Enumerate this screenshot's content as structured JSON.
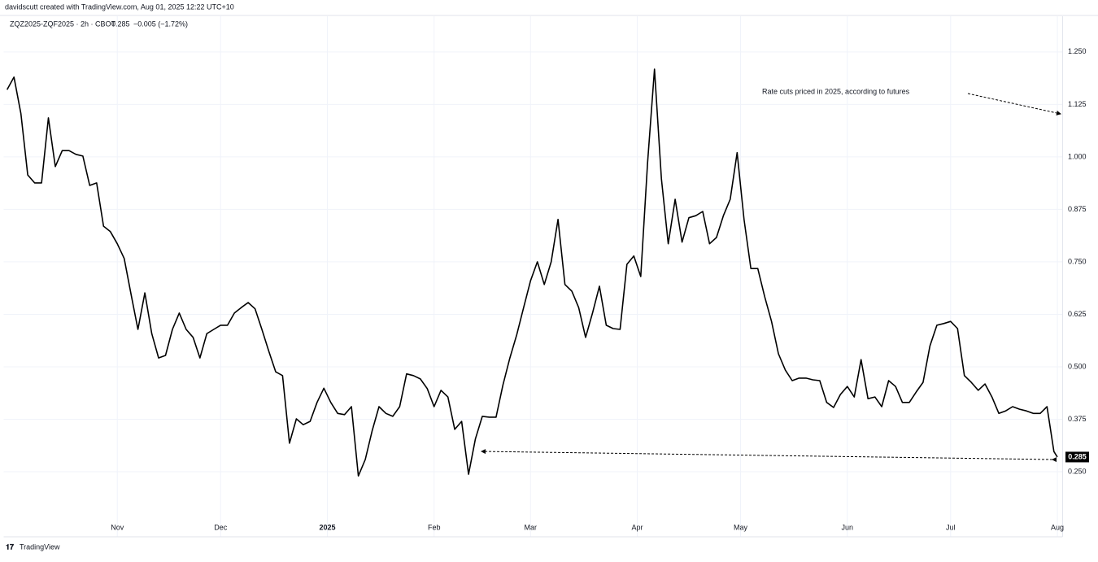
{
  "header": {
    "credit": "davidscutt created with TradingView.com, Aug 01, 2025 12:22 UTC+10",
    "symbol": "ZQZ2025-ZQF2025 · 2h · CBOT",
    "last": "0.285",
    "change": "−0.005 (−1.72%)"
  },
  "footer": {
    "brand": "TradingView"
  },
  "chart_data": {
    "type": "line",
    "annotation": "Rate cuts priced in 2025, according to futures",
    "grid": true,
    "xlim": [
      -2,
      305.5
    ],
    "ylim": [
      0.095,
      1.335
    ],
    "xticks": [
      {
        "value": 31,
        "label": "Nov"
      },
      {
        "value": 61,
        "label": "Dec"
      },
      {
        "value": 92,
        "label": "2025"
      },
      {
        "value": 123,
        "label": "Feb"
      },
      {
        "value": 151,
        "label": "Mar"
      },
      {
        "value": 182,
        "label": "Apr"
      },
      {
        "value": 212,
        "label": "May"
      },
      {
        "value": 243,
        "label": "Jun"
      },
      {
        "value": 273,
        "label": "Jul"
      },
      {
        "value": 304,
        "label": "Aug"
      }
    ],
    "yticks": [
      {
        "value": 0.25,
        "label": "0.250"
      },
      {
        "value": 0.375,
        "label": "0.375"
      },
      {
        "value": 0.5,
        "label": "0.500"
      },
      {
        "value": 0.625,
        "label": "0.625"
      },
      {
        "value": 0.75,
        "label": "0.750"
      },
      {
        "value": 0.875,
        "label": "0.875"
      },
      {
        "value": 1,
        "label": "1.000"
      },
      {
        "value": 1.125,
        "label": "1.125"
      },
      {
        "value": 1.25,
        "label": "1.250"
      }
    ],
    "series": [
      {
        "name": "ZQZ2025-ZQF2025",
        "color": "#000000",
        "x": [
          -1,
          1,
          3,
          5,
          7,
          9,
          11,
          13,
          15,
          17,
          19,
          21,
          23,
          25,
          27,
          29,
          31,
          33,
          35,
          37,
          39,
          41,
          43,
          45,
          47,
          49,
          51,
          53,
          55,
          57,
          59,
          61,
          63,
          65,
          67,
          69,
          71,
          73,
          75,
          77,
          79,
          81,
          83,
          85,
          87,
          89,
          91,
          93,
          95,
          97,
          99,
          101,
          103,
          105,
          107,
          109,
          111,
          113,
          115,
          117,
          119,
          121,
          123,
          125,
          127,
          129,
          131,
          133,
          135,
          137,
          139,
          141,
          143,
          145,
          147,
          149,
          151,
          153,
          155,
          157,
          159,
          161,
          163,
          165,
          167,
          169,
          171,
          173,
          175,
          177,
          179,
          181,
          183,
          185,
          187,
          189,
          191,
          193,
          195,
          197,
          199,
          201,
          203,
          205,
          207,
          209,
          211,
          213,
          215,
          217,
          219,
          221,
          223,
          225,
          227,
          229,
          231,
          233,
          235,
          237,
          239,
          241,
          243,
          245,
          247,
          249,
          251,
          253,
          255,
          257,
          259,
          261,
          263,
          265,
          267,
          269,
          271,
          273,
          275,
          277,
          279,
          281,
          283,
          285,
          287,
          289,
          291,
          293,
          295,
          297,
          299,
          301,
          303,
          304
        ],
        "values": [
          1.16,
          1.19,
          1.103,
          0.957,
          0.938,
          0.938,
          1.093,
          0.977,
          1.015,
          1.015,
          1.006,
          1.002,
          0.932,
          0.938,
          0.835,
          0.822,
          0.793,
          0.758,
          0.672,
          0.589,
          0.676,
          0.579,
          0.521,
          0.527,
          0.589,
          0.628,
          0.589,
          0.57,
          0.521,
          0.579,
          0.589,
          0.599,
          0.599,
          0.628,
          0.641,
          0.653,
          0.638,
          0.589,
          0.537,
          0.488,
          0.479,
          0.318,
          0.376,
          0.362,
          0.37,
          0.415,
          0.449,
          0.415,
          0.389,
          0.386,
          0.405,
          0.24,
          0.279,
          0.347,
          0.405,
          0.389,
          0.382,
          0.405,
          0.483,
          0.479,
          0.471,
          0.448,
          0.405,
          0.444,
          0.428,
          0.351,
          0.37,
          0.244,
          0.328,
          0.382,
          0.38,
          0.38,
          0.457,
          0.521,
          0.576,
          0.641,
          0.705,
          0.75,
          0.696,
          0.75,
          0.851,
          0.696,
          0.68,
          0.641,
          0.57,
          0.628,
          0.692,
          0.599,
          0.591,
          0.589,
          0.744,
          0.764,
          0.715,
          0.986,
          1.209,
          0.948,
          0.793,
          0.899,
          0.797,
          0.855,
          0.86,
          0.87,
          0.793,
          0.808,
          0.86,
          0.899,
          1.01,
          0.851,
          0.734,
          0.734,
          0.667,
          0.608,
          0.531,
          0.492,
          0.467,
          0.473,
          0.473,
          0.469,
          0.467,
          0.415,
          0.403,
          0.434,
          0.453,
          0.428,
          0.517,
          0.424,
          0.428,
          0.405,
          0.467,
          0.453,
          0.415,
          0.415,
          0.44,
          0.463,
          0.55,
          0.599,
          0.603,
          0.608,
          0.591,
          0.479,
          0.463,
          0.444,
          0.459,
          0.428,
          0.389,
          0.395,
          0.405,
          0.399,
          0.395,
          0.389,
          0.389,
          0.405,
          0.298,
          0.285
        ]
      }
    ]
  }
}
